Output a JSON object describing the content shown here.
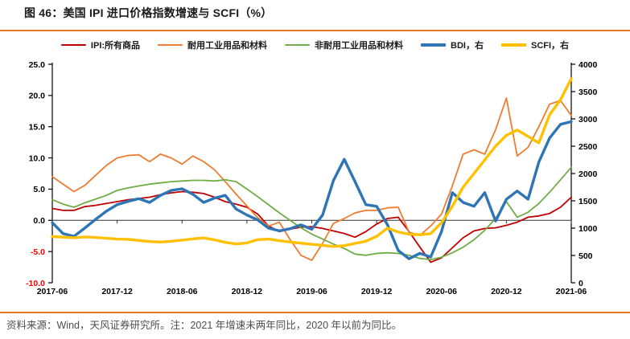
{
  "header": {
    "title": "图 46：美国 IPI 进口价格指数增速与 SCFI（%）"
  },
  "footer": {
    "source_note": "资料来源：Wind，天风证券研究所。注：2021 年增速未两年同比，2020 年以前为同比。"
  },
  "colors": {
    "accent_rule": "#E87722",
    "axis_line": "#000000",
    "zero_line": "#333333",
    "tick_label": "#000000",
    "negative_tick_label": "#FF0000",
    "title_text": "#1a1a1a",
    "footer_text": "#4d4d4d"
  },
  "chart_data": {
    "type": "line",
    "title": "图 46：美国 IPI 进口价格指数增速与 SCFI（%）",
    "x_start": "2017-06",
    "x_frequency": "monthly",
    "x_tick_labels": [
      "2017-06",
      "2017-12",
      "2018-06",
      "2018-12",
      "2019-06",
      "2019-12",
      "2020-06",
      "2020-12",
      "2021-06"
    ],
    "x_tick_indices": [
      0,
      6,
      12,
      18,
      24,
      30,
      36,
      42,
      48
    ],
    "left_axis": {
      "min": -10,
      "max": 25,
      "tick_labels": [
        "25.0",
        "20.0",
        "15.0",
        "10.0",
        "5.0",
        "0.0",
        "-5.0",
        "-10.0"
      ],
      "tick_values": [
        25,
        20,
        15,
        10,
        5,
        0,
        -5,
        -10
      ]
    },
    "right_axis": {
      "min": 0,
      "max": 4000,
      "tick_labels": [
        "4000",
        "3500",
        "3000",
        "2500",
        "2000",
        "1500",
        "1000",
        "500",
        "0"
      ],
      "tick_values": [
        4000,
        3500,
        3000,
        2500,
        2000,
        1500,
        1000,
        500,
        0
      ]
    },
    "grid": "zero-line-only",
    "legend_position": "top-center",
    "series": [
      {
        "key": "ipi-all",
        "name": "IPI:所有商品",
        "axis": "left",
        "color": "#C00000",
        "weight": "thin",
        "values": [
          1.9,
          1.6,
          1.6,
          2.2,
          2.4,
          2.7,
          3.0,
          3.3,
          3.5,
          3.7,
          4.1,
          4.4,
          4.6,
          4.5,
          4.3,
          3.7,
          3.0,
          2.6,
          2.1,
          1.0,
          -0.9,
          -1.8,
          -1.4,
          -1.1,
          -1.0,
          -1.3,
          -1.7,
          -2.1,
          -2.7,
          -1.8,
          -0.6,
          0.3,
          0.5,
          -1.8,
          -4.3,
          -6.7,
          -6.0,
          -4.4,
          -2.8,
          -1.7,
          -1.3,
          -1.2,
          -0.8,
          -0.3,
          0.5,
          0.7,
          1.1,
          2.1,
          3.7
        ]
      },
      {
        "key": "durable",
        "name": "耐用工业用品和材料",
        "axis": "left",
        "color": "#ED7D31",
        "weight": "thin",
        "values": [
          7.0,
          5.8,
          4.6,
          5.6,
          7.2,
          8.8,
          10.0,
          10.4,
          10.5,
          9.4,
          10.6,
          10.0,
          9.0,
          10.3,
          9.4,
          8.1,
          6.2,
          4.2,
          2.3,
          0.4,
          -0.9,
          -0.3,
          -3.1,
          -5.6,
          -6.4,
          -3.7,
          -0.5,
          0.3,
          1.2,
          1.6,
          1.6,
          2.0,
          2.1,
          -1.9,
          -2.4,
          -0.9,
          1.0,
          5.5,
          10.6,
          11.3,
          10.6,
          14.5,
          19.6,
          10.3,
          11.7,
          15.0,
          18.6,
          19.2,
          16.8
        ]
      },
      {
        "key": "nondurable",
        "name": "非耐用工业用品和材料",
        "axis": "left",
        "color": "#70AD47",
        "weight": "thin",
        "values": [
          3.3,
          2.6,
          2.1,
          2.8,
          3.4,
          4.0,
          4.8,
          5.2,
          5.5,
          5.8,
          6.0,
          6.2,
          6.3,
          6.4,
          6.4,
          6.3,
          6.5,
          6.2,
          5.0,
          3.8,
          2.5,
          1.2,
          0.0,
          -1.2,
          -2.2,
          -3.0,
          -3.8,
          -4.5,
          -5.4,
          -5.6,
          -5.3,
          -5.2,
          -5.3,
          -5.6,
          -6.1,
          -6.3,
          -5.9,
          -5.2,
          -4.3,
          -3.1,
          -1.6,
          0.3,
          3.0,
          0.5,
          1.3,
          2.7,
          4.5,
          6.5,
          8.5
        ]
      },
      {
        "key": "bdi",
        "name": "BDI，右",
        "axis": "right",
        "color": "#2E75B6",
        "weight": "thick",
        "values": [
          1100,
          900,
          850,
          1000,
          1160,
          1310,
          1430,
          1490,
          1540,
          1470,
          1600,
          1690,
          1720,
          1620,
          1470,
          1550,
          1600,
          1350,
          1240,
          1150,
          1000,
          950,
          990,
          1060,
          980,
          1240,
          1870,
          2260,
          1850,
          1430,
          1400,
          1060,
          590,
          440,
          540,
          470,
          940,
          1650,
          1470,
          1400,
          1650,
          1130,
          1530,
          1680,
          1530,
          2210,
          2650,
          2900,
          2950
        ]
      },
      {
        "key": "scfi",
        "name": "SCFI，右",
        "axis": "right",
        "color": "#FFC000",
        "weight": "thick",
        "values": [
          845,
          835,
          825,
          840,
          830,
          815,
          800,
          795,
          775,
          755,
          745,
          760,
          780,
          805,
          820,
          785,
          740,
          710,
          730,
          790,
          800,
          770,
          745,
          725,
          705,
          685,
          665,
          680,
          720,
          760,
          850,
          1000,
          930,
          890,
          880,
          900,
          1100,
          1400,
          1750,
          2000,
          2250,
          2500,
          2700,
          2795,
          2680,
          2560,
          3075,
          3350,
          3735
        ]
      }
    ]
  }
}
